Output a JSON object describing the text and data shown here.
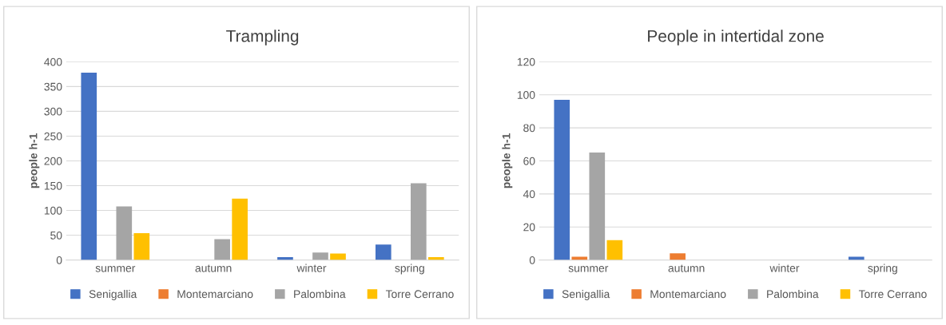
{
  "chart_data": [
    {
      "type": "bar",
      "title": "Trampling",
      "ylabel": "people h-1",
      "categories": [
        "summer",
        "autumn",
        "winter",
        "spring"
      ],
      "series": [
        {
          "name": "Senigallia",
          "color": "#4472c4",
          "values": [
            378,
            0,
            6,
            31
          ]
        },
        {
          "name": "Montemarciano",
          "color": "#ed7d31",
          "values": [
            0,
            0,
            0,
            0
          ]
        },
        {
          "name": "Palombina",
          "color": "#a5a5a5",
          "values": [
            108,
            42,
            15,
            155
          ]
        },
        {
          "name": "Torre Cerrano",
          "color": "#ffc000",
          "values": [
            54,
            124,
            13,
            6
          ]
        }
      ],
      "ylim": [
        0,
        400
      ],
      "yticks": [
        0,
        50,
        100,
        150,
        200,
        250,
        300,
        350,
        400
      ],
      "grid": "y",
      "legend": "bottom"
    },
    {
      "type": "bar",
      "title": "People in intertidal zone",
      "ylabel": "people h-1",
      "categories": [
        "summer",
        "autumn",
        "winter",
        "spring"
      ],
      "series": [
        {
          "name": "Senigallia",
          "color": "#4472c4",
          "values": [
            97,
            0,
            0,
            2
          ]
        },
        {
          "name": "Montemarciano",
          "color": "#ed7d31",
          "values": [
            2,
            4,
            0,
            0
          ]
        },
        {
          "name": "Palombina",
          "color": "#a5a5a5",
          "values": [
            65,
            0,
            0,
            0
          ]
        },
        {
          "name": "Torre Cerrano",
          "color": "#ffc000",
          "values": [
            12,
            0,
            0,
            0
          ]
        }
      ],
      "ylim": [
        0,
        120
      ],
      "yticks": [
        0,
        20,
        40,
        60,
        80,
        100,
        120
      ],
      "grid": "y",
      "legend": "bottom"
    }
  ]
}
